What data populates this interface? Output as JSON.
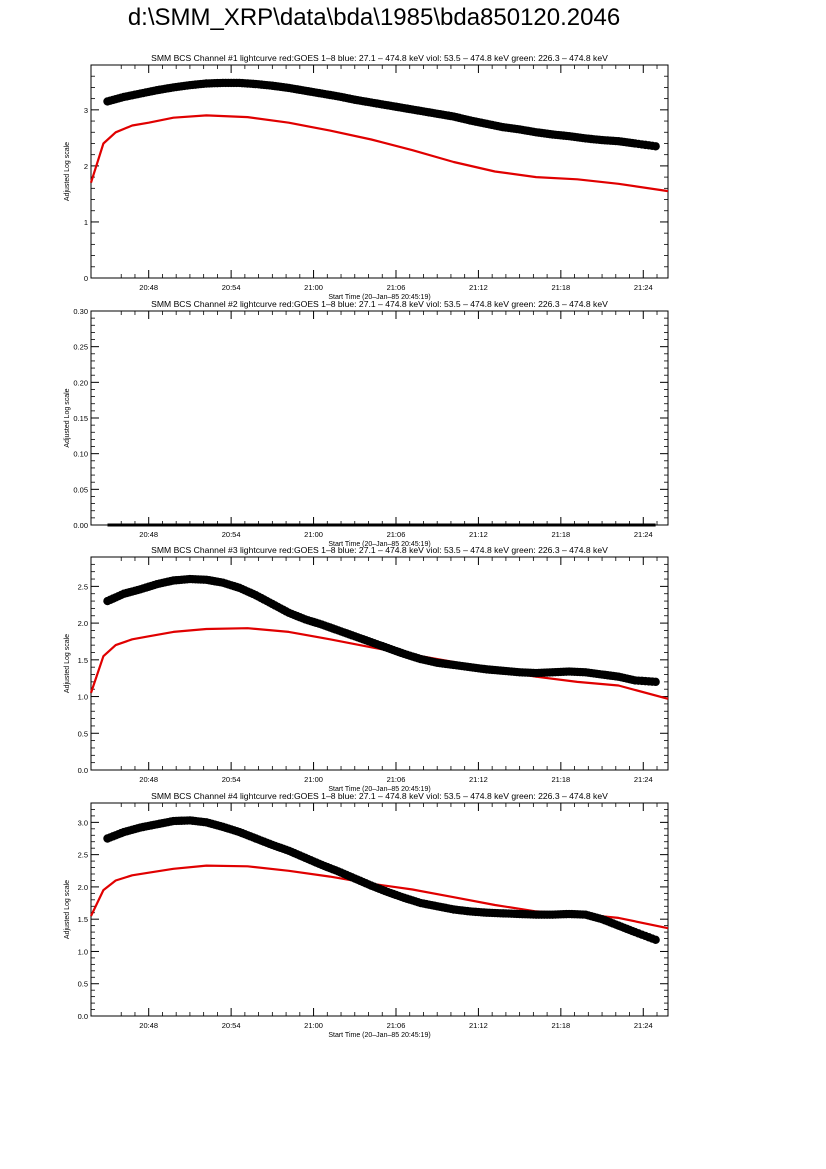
{
  "page": {
    "title": "d:\\SMM_XRP\\data\\bda\\1985\\bda850120.2046"
  },
  "colors": {
    "goes": "#e00000",
    "bcs": "#000000",
    "axis": "#000000",
    "background": "#ffffff"
  },
  "chart_data": [
    {
      "type": "line",
      "title": "SMM BCS Channel #1 lightcurve  red:GOES 1–8  blue: 27.1 – 474.8 keV  viol: 53.5 – 474.8 keV  green: 226.3 – 474.8 keV",
      "xlabel": "Start Time (20–Jan–85 20:45:19)",
      "ylabel": "Adjusted Log scale",
      "xlim": [
        20.73,
        21.43
      ],
      "ylim": [
        0,
        3.8
      ],
      "x_ticks": [
        "20:48",
        "20:54",
        "21:00",
        "21:06",
        "21:12",
        "21:18",
        "21:24"
      ],
      "y_ticks": [
        "0",
        "1",
        "2",
        "3"
      ],
      "series": [
        {
          "name": "red",
          "style": "line",
          "x": [
            20.73,
            20.745,
            20.76,
            20.78,
            20.8,
            20.83,
            20.87,
            20.92,
            20.97,
            21.02,
            21.07,
            21.12,
            21.17,
            21.22,
            21.27,
            21.32,
            21.37,
            21.43
          ],
          "values": [
            1.7,
            2.4,
            2.6,
            2.72,
            2.77,
            2.86,
            2.9,
            2.87,
            2.77,
            2.63,
            2.47,
            2.28,
            2.07,
            1.9,
            1.8,
            1.76,
            1.68,
            1.55
          ]
        },
        {
          "name": "black",
          "style": "marker",
          "x": [
            20.75,
            20.77,
            20.79,
            20.81,
            20.83,
            20.85,
            20.87,
            20.89,
            20.91,
            20.93,
            20.95,
            20.97,
            20.99,
            21.01,
            21.03,
            21.05,
            21.07,
            21.09,
            21.11,
            21.13,
            21.15,
            21.17,
            21.19,
            21.21,
            21.23,
            21.25,
            21.27,
            21.29,
            21.31,
            21.33,
            21.35,
            21.37,
            21.39,
            21.415
          ],
          "values": [
            3.15,
            3.23,
            3.29,
            3.35,
            3.4,
            3.44,
            3.47,
            3.48,
            3.48,
            3.46,
            3.43,
            3.39,
            3.34,
            3.29,
            3.24,
            3.18,
            3.13,
            3.08,
            3.03,
            2.98,
            2.93,
            2.88,
            2.81,
            2.75,
            2.69,
            2.65,
            2.6,
            2.56,
            2.53,
            2.49,
            2.46,
            2.44,
            2.4,
            2.35
          ]
        }
      ]
    },
    {
      "type": "line",
      "title": "SMM BCS Channel #2 lightcurve  red:GOES 1–8  blue: 27.1 – 474.8 keV  viol: 53.5 – 474.8 keV  green: 226.3 – 474.8 keV",
      "xlabel": "Start Time (20–Jan–85 20:45:19)",
      "ylabel": "Adjusted Log scale",
      "xlim": [
        20.73,
        21.43
      ],
      "ylim": [
        0,
        0.3
      ],
      "x_ticks": [
        "20:48",
        "20:54",
        "21:00",
        "21:06",
        "21:12",
        "21:18",
        "21:24"
      ],
      "y_ticks": [
        "0.00",
        "0.05",
        "0.10",
        "0.15",
        "0.20",
        "0.25",
        "0.30"
      ],
      "series": [
        {
          "name": "black",
          "style": "line",
          "x": [
            20.75,
            21.415
          ],
          "values": [
            0,
            0
          ]
        }
      ]
    },
    {
      "type": "line",
      "title": "SMM BCS Channel #3 lightcurve  red:GOES 1–8  blue: 27.1 – 474.8 keV  viol: 53.5 – 474.8 keV  green: 226.3 – 474.8 keV",
      "xlabel": "Start Time (20–Jan–85 20:45:19)",
      "ylabel": "Adjusted Log scale",
      "xlim": [
        20.73,
        21.43
      ],
      "ylim": [
        0,
        2.9
      ],
      "x_ticks": [
        "20:48",
        "20:54",
        "21:00",
        "21:06",
        "21:12",
        "21:18",
        "21:24"
      ],
      "y_ticks": [
        "0.0",
        "0.5",
        "1.0",
        "1.5",
        "2.0",
        "2.5"
      ],
      "series": [
        {
          "name": "red",
          "style": "line",
          "x": [
            20.73,
            20.745,
            20.76,
            20.78,
            20.8,
            20.83,
            20.87,
            20.92,
            20.97,
            21.02,
            21.07,
            21.12,
            21.17,
            21.22,
            21.27,
            21.32,
            21.37,
            21.43
          ],
          "values": [
            1.05,
            1.55,
            1.7,
            1.78,
            1.82,
            1.88,
            1.92,
            1.93,
            1.88,
            1.78,
            1.67,
            1.57,
            1.47,
            1.36,
            1.27,
            1.2,
            1.15,
            0.97
          ]
        },
        {
          "name": "black",
          "style": "marker",
          "x": [
            20.75,
            20.77,
            20.79,
            20.81,
            20.83,
            20.85,
            20.87,
            20.89,
            20.91,
            20.93,
            20.95,
            20.97,
            20.99,
            21.01,
            21.03,
            21.05,
            21.07,
            21.09,
            21.11,
            21.13,
            21.15,
            21.17,
            21.19,
            21.21,
            21.23,
            21.25,
            21.27,
            21.29,
            21.31,
            21.33,
            21.35,
            21.37,
            21.39,
            21.415
          ],
          "values": [
            2.3,
            2.4,
            2.46,
            2.53,
            2.58,
            2.6,
            2.59,
            2.55,
            2.48,
            2.38,
            2.26,
            2.14,
            2.05,
            1.98,
            1.9,
            1.82,
            1.74,
            1.66,
            1.58,
            1.51,
            1.46,
            1.43,
            1.4,
            1.37,
            1.35,
            1.33,
            1.32,
            1.33,
            1.34,
            1.33,
            1.3,
            1.27,
            1.22,
            1.2
          ]
        }
      ]
    },
    {
      "type": "line",
      "title": "SMM BCS Channel #4 lightcurve  red:GOES 1–8  blue: 27.1 – 474.8 keV  viol: 53.5 – 474.8 keV  green: 226.3 – 474.8 keV",
      "xlabel": "Start Time (20–Jan–85 20:45:19)",
      "ylabel": "Adjusted Log scale",
      "xlim": [
        20.73,
        21.43
      ],
      "ylim": [
        0,
        3.3
      ],
      "x_ticks": [
        "20:48",
        "20:54",
        "21:00",
        "21:06",
        "21:12",
        "21:18",
        "21:24"
      ],
      "y_ticks": [
        "0.0",
        "0.5",
        "1.0",
        "1.5",
        "2.0",
        "2.5",
        "3.0"
      ],
      "series": [
        {
          "name": "red",
          "style": "line",
          "x": [
            20.73,
            20.745,
            20.76,
            20.78,
            20.8,
            20.83,
            20.87,
            20.92,
            20.97,
            21.02,
            21.07,
            21.12,
            21.17,
            21.22,
            21.27,
            21.32,
            21.37,
            21.43
          ],
          "values": [
            1.55,
            1.95,
            2.1,
            2.18,
            2.22,
            2.28,
            2.33,
            2.32,
            2.25,
            2.16,
            2.05,
            1.96,
            1.84,
            1.72,
            1.62,
            1.58,
            1.52,
            1.36
          ]
        },
        {
          "name": "black",
          "style": "marker",
          "x": [
            20.75,
            20.77,
            20.79,
            20.81,
            20.83,
            20.85,
            20.87,
            20.89,
            20.91,
            20.93,
            20.95,
            20.97,
            20.99,
            21.01,
            21.03,
            21.05,
            21.07,
            21.09,
            21.11,
            21.13,
            21.15,
            21.17,
            21.19,
            21.21,
            21.23,
            21.25,
            21.27,
            21.29,
            21.31,
            21.33,
            21.35,
            21.37,
            21.39,
            21.415
          ],
          "values": [
            2.75,
            2.85,
            2.92,
            2.97,
            3.02,
            3.03,
            3.0,
            2.93,
            2.85,
            2.75,
            2.65,
            2.56,
            2.45,
            2.34,
            2.24,
            2.13,
            2.02,
            1.92,
            1.83,
            1.75,
            1.7,
            1.65,
            1.62,
            1.6,
            1.59,
            1.58,
            1.57,
            1.57,
            1.58,
            1.57,
            1.5,
            1.4,
            1.3,
            1.18
          ]
        }
      ]
    }
  ]
}
